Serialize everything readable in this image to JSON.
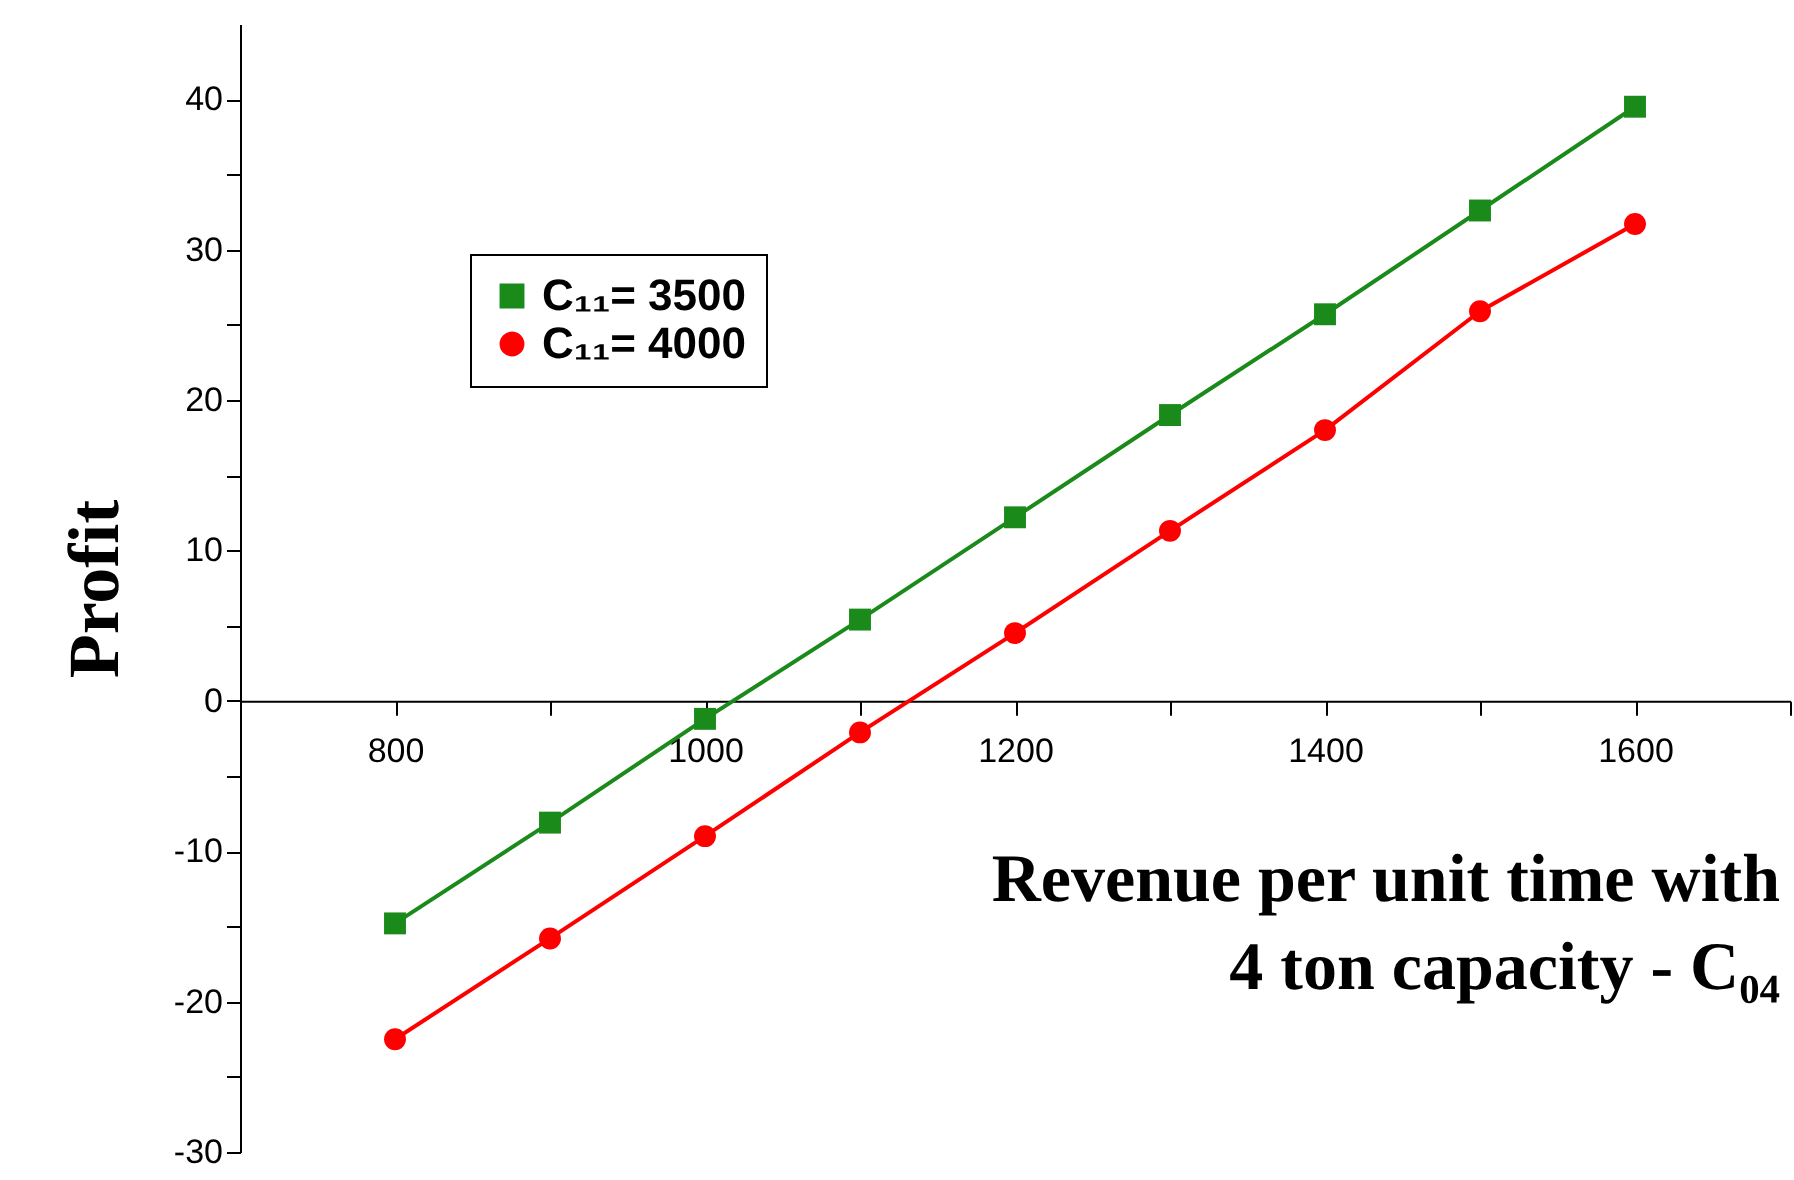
{
  "chart_data": {
    "type": "line",
    "xlabel": "Revenue  per unit time with\n4 ton capacity - C₀₄",
    "ylabel": "Profit",
    "x": [
      800,
      900,
      1000,
      1100,
      1200,
      1300,
      1400,
      1500,
      1600
    ],
    "series": [
      {
        "name": "C₁₁= 3500",
        "color": "#1a8a1a",
        "marker": "square",
        "values": [
          -14.8,
          -8.1,
          -1.2,
          5.4,
          12.2,
          19.0,
          25.7,
          32.6,
          39.5
        ]
      },
      {
        "name": "C₁₁= 4000",
        "color": "#ff0000",
        "marker": "circle",
        "values": [
          -22.5,
          -15.8,
          -9.0,
          -2.1,
          4.5,
          11.3,
          18.0,
          25.9,
          31.7
        ]
      }
    ],
    "xlim": [
      700,
      1700
    ],
    "xticks": [
      {
        "value": 700,
        "label": null
      },
      800,
      {
        "value": 900,
        "label": null
      },
      1000,
      {
        "value": 1100,
        "label": null
      },
      1200,
      {
        "value": 1300,
        "label": null
      },
      1400,
      {
        "value": 1500,
        "label": null
      },
      1600,
      {
        "value": 1700,
        "label": null
      }
    ],
    "ylim": [
      -30,
      45
    ],
    "yticks": [
      -30,
      {
        "value": -25,
        "label": null
      },
      -20,
      {
        "value": -15,
        "label": null
      },
      -10,
      {
        "value": -5,
        "label": null
      },
      0,
      {
        "value": 5,
        "label": null
      },
      10,
      {
        "value": 15,
        "label": null
      },
      20,
      {
        "value": 25,
        "label": null
      },
      30,
      {
        "value": 35,
        "label": null
      },
      40
    ],
    "grid": false,
    "legend": "top left",
    "line_style": "solid"
  }
}
